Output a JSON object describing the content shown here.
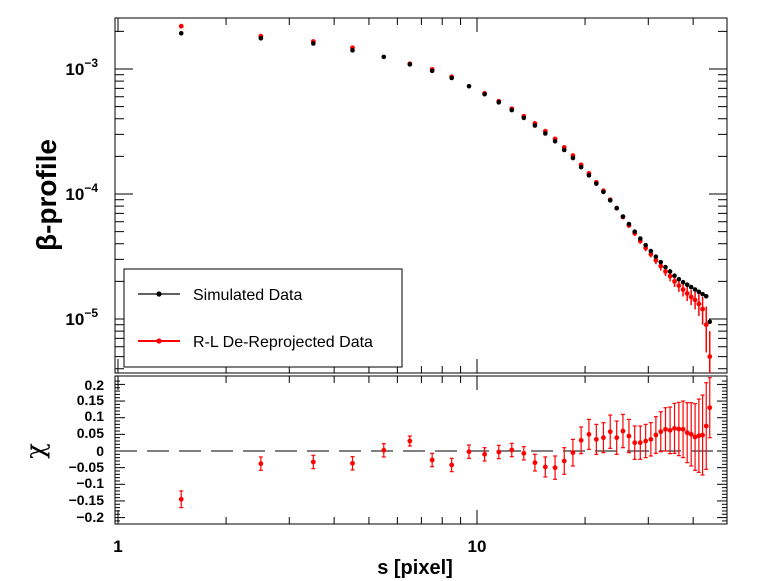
{
  "chart_data": [
    {
      "type": "scatter",
      "panel": "top",
      "yscale": "log",
      "xscale": "log",
      "ylabel": "β-profile",
      "xlim": [
        1,
        46
      ],
      "ylim": [
        4e-06,
        0.0032
      ],
      "yticks": [
        {
          "label_base": "10",
          "label_exp": "−3",
          "value": 0.001
        },
        {
          "label_base": "10",
          "label_exp": "−4",
          "value": 0.0001
        },
        {
          "label_base": "10",
          "label_exp": "−5",
          "value": 1e-05
        }
      ],
      "legend": {
        "placement": "bottom-left",
        "entries": [
          "Simulated Data",
          "R-L De-Reprojected Data"
        ]
      },
      "series": [
        {
          "name": "Simulated Data",
          "color": "#000000",
          "x": [
            1.5,
            2.5,
            3.5,
            4.5,
            5.5,
            6.5,
            7.5,
            8.5,
            9.5,
            10.5,
            11.5,
            12.5,
            13.5,
            14.5,
            15.5,
            16.5,
            17.5,
            18.5,
            19.5,
            20.5,
            21.5,
            22.5,
            23.5,
            24.5,
            25.5,
            26.5,
            27.5,
            28.5,
            29.5,
            30.5,
            31.5,
            32.5,
            33.5,
            34.5,
            35.5,
            36.5,
            37.5,
            38.5,
            39.5,
            40.5,
            41.5,
            42.5,
            43.5,
            44.5
          ],
          "values": [
            0.00193,
            0.00176,
            0.0016,
            0.00141,
            0.00125,
            0.00109,
            0.000967,
            0.000848,
            0.000728,
            0.000628,
            0.000541,
            0.000469,
            0.000406,
            0.000353,
            0.000305,
            0.000264,
            0.000225,
            0.000194,
            0.000164,
            0.000141,
            0.000121,
            0.000104,
            8.9e-05,
            7.7e-05,
            6.6e-05,
            5.75e-05,
            5e-05,
            4.4e-05,
            3.9e-05,
            3.5e-05,
            3.15e-05,
            2.85e-05,
            2.6e-05,
            2.4e-05,
            2.22e-05,
            2.08e-05,
            1.97e-05,
            1.88e-05,
            1.8e-05,
            1.72e-05,
            1.65e-05,
            1.58e-05,
            1.52e-05,
            9.5e-06
          ]
        },
        {
          "name": "R-L De-Reprojected Data",
          "color": "#ff0000",
          "x": [
            1.5,
            2.5,
            3.5,
            4.5,
            6.5,
            7.5,
            8.5,
            10.5,
            11.5,
            12.5,
            13.5,
            14.5,
            15.5,
            16.5,
            17.5,
            18.5,
            19.5,
            20.5,
            21.5,
            22.5,
            23.5,
            24.5,
            25.5,
            26.5,
            27.5,
            28.5,
            29.5,
            30.5,
            31.5,
            32.5,
            33.5,
            34.5,
            35.5,
            36.5,
            37.5,
            38.5,
            39.5,
            40.5,
            41.5,
            42.5,
            43.5,
            44.5
          ],
          "values": [
            0.0022,
            0.00183,
            0.00166,
            0.00148,
            0.0011,
            0.000993,
            0.000866,
            0.000639,
            0.000552,
            0.000481,
            0.000419,
            0.000367,
            0.000318,
            0.000276,
            0.000236,
            0.000203,
            0.000171,
            0.000146,
            0.000124,
            0.000106,
            9e-05,
            7.7e-05,
            6.55e-05,
            5.6e-05,
            4.85e-05,
            4.2e-05,
            3.7e-05,
            3.3e-05,
            2.95e-05,
            2.65e-05,
            2.4e-05,
            2.2e-05,
            2e-05,
            1.85e-05,
            1.72e-05,
            1.6e-05,
            1.5e-05,
            1.42e-05,
            1.32e-05,
            1.2e-05,
            9e-06,
            5e-06
          ],
          "errors_rel": [
            0.02,
            0.02,
            0.02,
            0.02,
            0.02,
            0.02,
            0.02,
            0.02,
            0.02,
            0.02,
            0.02,
            0.02,
            0.02,
            0.02,
            0.02,
            0.02,
            0.02,
            0.02,
            0.02,
            0.03,
            0.03,
            0.03,
            0.04,
            0.04,
            0.05,
            0.05,
            0.06,
            0.06,
            0.07,
            0.08,
            0.08,
            0.09,
            0.1,
            0.11,
            0.12,
            0.13,
            0.14,
            0.16,
            0.2,
            0.25,
            0.4,
            0.6
          ]
        }
      ]
    },
    {
      "type": "scatter",
      "panel": "bottom",
      "xscale": "log",
      "ylabel": "χ",
      "xlabel": "s [pixel]",
      "xlim": [
        1,
        46
      ],
      "ylim": [
        -0.22,
        0.22
      ],
      "xticks": [
        {
          "label": "1",
          "value": 1
        },
        {
          "label": "10",
          "value": 10
        }
      ],
      "yticks": [
        {
          "label": "0.2",
          "value": 0.2
        },
        {
          "label": "0.15",
          "value": 0.15
        },
        {
          "label": "0.1",
          "value": 0.1
        },
        {
          "label": "0.05",
          "value": 0.05
        },
        {
          "label": "0",
          "value": 0
        },
        {
          "label": "−0.05",
          "value": -0.05
        },
        {
          "label": "−0.1",
          "value": -0.1
        },
        {
          "label": "−0.15",
          "value": -0.15
        },
        {
          "label": "−0.2",
          "value": -0.2
        }
      ],
      "reference_line": {
        "y": 0,
        "style": "dashed"
      },
      "series": [
        {
          "name": "chi",
          "color": "#ff0000",
          "x": [
            1.5,
            2.5,
            3.5,
            4.5,
            5.5,
            6.5,
            7.5,
            8.5,
            9.5,
            10.5,
            11.5,
            12.5,
            13.5,
            14.5,
            15.5,
            16.5,
            17.5,
            18.5,
            19.5,
            20.5,
            21.5,
            22.5,
            23.5,
            24.5,
            25.5,
            26.5,
            27.5,
            28.5,
            29.5,
            30.5,
            31.5,
            32.5,
            33.5,
            34.5,
            35.5,
            36.5,
            37.5,
            38.5,
            39.5,
            40.5,
            41.5,
            42.5,
            43.5,
            44.5
          ],
          "values": [
            -0.145,
            -0.038,
            -0.033,
            -0.037,
            0.002,
            0.03,
            -0.027,
            -0.042,
            -0.002,
            -0.01,
            -0.003,
            0.003,
            -0.007,
            -0.035,
            -0.048,
            -0.05,
            -0.03,
            -0.005,
            0.032,
            0.05,
            0.035,
            0.04,
            0.058,
            0.04,
            0.06,
            0.045,
            0.025,
            0.025,
            0.03,
            0.035,
            0.048,
            0.058,
            0.065,
            0.062,
            0.068,
            0.066,
            0.065,
            0.055,
            0.05,
            0.042,
            0.046,
            0.048,
            0.075,
            0.13
          ],
          "errors": [
            0.025,
            0.02,
            0.02,
            0.02,
            0.02,
            0.015,
            0.02,
            0.02,
            0.02,
            0.02,
            0.02,
            0.02,
            0.02,
            0.025,
            0.03,
            0.035,
            0.04,
            0.04,
            0.04,
            0.045,
            0.045,
            0.045,
            0.05,
            0.05,
            0.05,
            0.05,
            0.05,
            0.05,
            0.05,
            0.05,
            0.055,
            0.06,
            0.065,
            0.07,
            0.075,
            0.08,
            0.085,
            0.09,
            0.095,
            0.1,
            0.11,
            0.12,
            0.13,
            0.09
          ]
        }
      ]
    }
  ]
}
